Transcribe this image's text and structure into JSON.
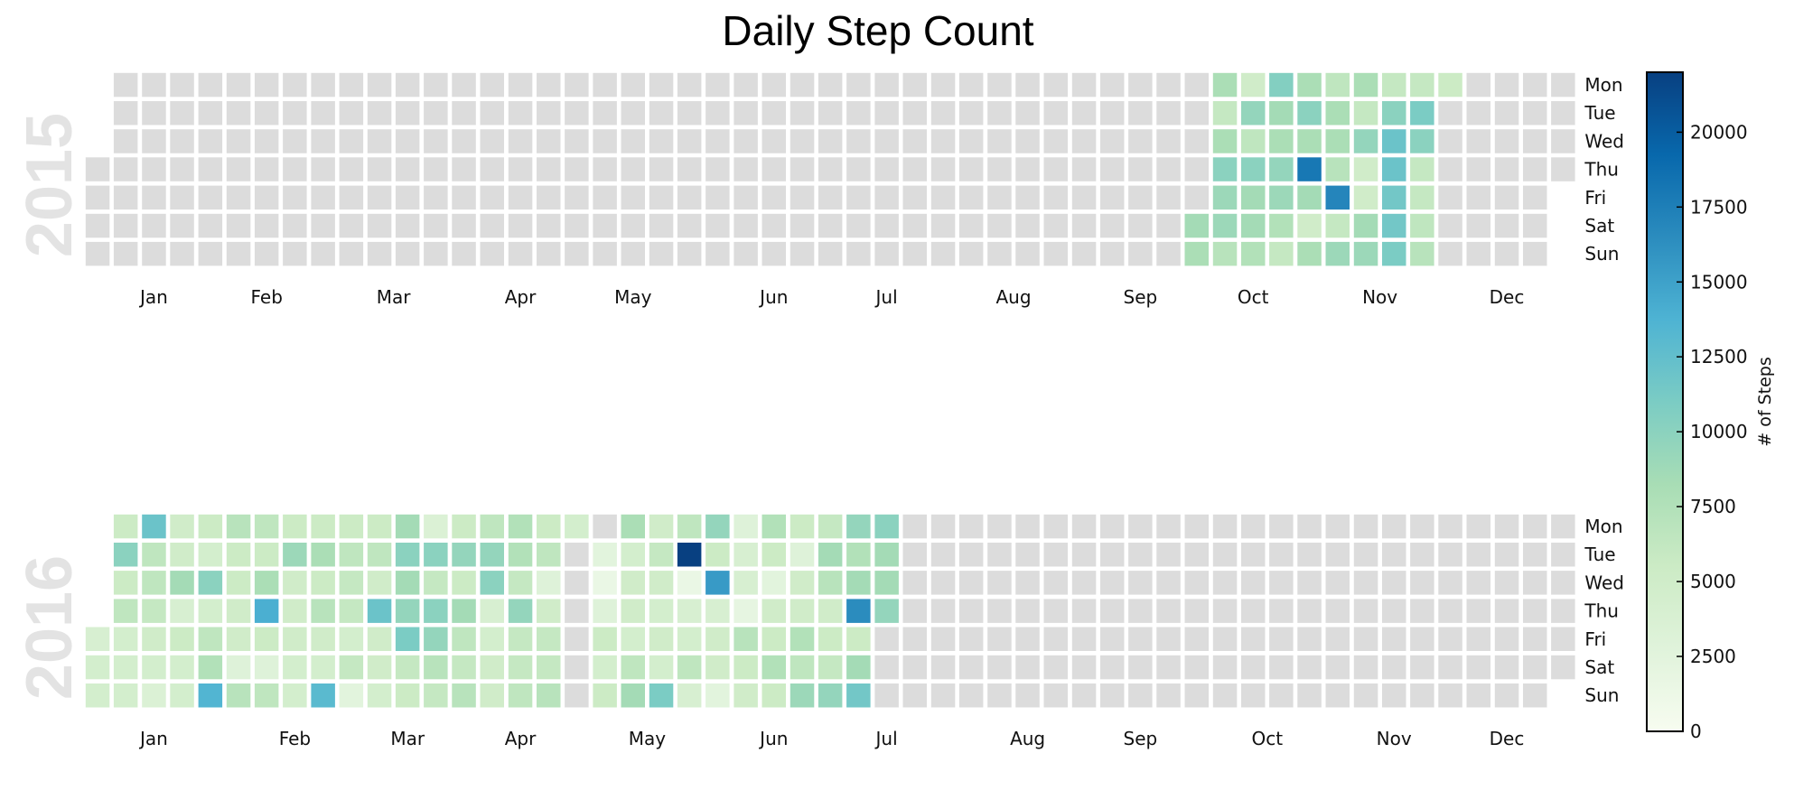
{
  "chart_data": {
    "type": "heatmap",
    "title": "Daily Step Count",
    "colorbar": {
      "label": "# of Steps",
      "range": [
        0,
        22000
      ],
      "ticks": [
        0,
        2500,
        5000,
        7500,
        10000,
        12500,
        15000,
        17500,
        20000
      ],
      "tick_labels": [
        "0",
        "2500",
        "5000",
        "7500",
        "10000",
        "12500",
        "15000",
        "17500",
        "20000"
      ],
      "colormap": "GnBu",
      "stops": [
        "#f7fcf0",
        "#e0f3db",
        "#ccebc5",
        "#a8ddb5",
        "#7bccc4",
        "#4eb3d3",
        "#2b8cbe",
        "#0868ac",
        "#084081"
      ]
    },
    "empty_color": "#dcdcdc",
    "day_labels": [
      "Mon",
      "Tue",
      "Wed",
      "Thu",
      "Fri",
      "Sat",
      "Sun"
    ],
    "months": [
      "Jan",
      "Feb",
      "Mar",
      "Apr",
      "May",
      "Jun",
      "Jul",
      "Aug",
      "Sep",
      "Oct",
      "Nov",
      "Dec"
    ],
    "calendars": [
      {
        "year": "2015",
        "first_day_weekday": 3,
        "days_in_year": 365,
        "values_start": "2015-10-03",
        "values": [
          8500,
          8000,
          8000,
          6000,
          8000,
          10000,
          9000,
          9000,
          7000,
          5000,
          9500,
          6500,
          10000,
          8500,
          8500,
          7500,
          10500,
          8500,
          8000,
          9500,
          9000,
          7500,
          6000,
          8000,
          10000,
          8000,
          18000,
          8500,
          5000,
          8000,
          6500,
          8000,
          8000,
          7000,
          17000,
          6000,
          9000,
          8000,
          6000,
          9500,
          5000,
          5000,
          8500,
          9000,
          6000,
          10000,
          12000,
          12000,
          11500,
          11500,
          11000,
          6000,
          11000,
          10000,
          6000,
          6000,
          6500,
          7000,
          5500
        ]
      },
      {
        "year": "2016",
        "first_day_weekday": 4,
        "days_in_year": 366,
        "values_start": "2016-01-01",
        "values": [
          4000,
          4500,
          4500,
          5500,
          10000,
          5500,
          6500,
          4500,
          4500,
          4500,
          12000,
          6500,
          6500,
          6000,
          5000,
          4500,
          3500,
          5000,
          5000,
          8500,
          4000,
          5500,
          4500,
          4500,
          5500,
          4500,
          10000,
          4500,
          6500,
          7500,
          13500,
          7000,
          5500,
          5500,
          5000,
          5000,
          3000,
          7000,
          6500,
          5500,
          8000,
          14000,
          5500,
          3000,
          6500,
          5500,
          9000,
          5000,
          5000,
          5000,
          4500,
          4500,
          5500,
          8000,
          5500,
          7000,
          5000,
          4500,
          13000,
          5500,
          6500,
          6000,
          6000,
          4500,
          6000,
          2500,
          5500,
          6500,
          5000,
          12000,
          5000,
          5000,
          4500,
          8500,
          10000,
          8500,
          9500,
          11000,
          6000,
          5500,
          3500,
          10000,
          6000,
          10000,
          9500,
          7000,
          6000,
          5500,
          9500,
          5500,
          8500,
          6500,
          6000,
          7000,
          6500,
          9500,
          10000,
          4000,
          4500,
          5000,
          5000,
          7500,
          7500,
          6000,
          9500,
          6000,
          6000,
          6500,
          5500,
          6500,
          3000,
          5000,
          6000,
          6000,
          7000,
          4500,
          0,
          0,
          0,
          0,
          0,
          0,
          0,
          2500,
          1500,
          3000,
          5500,
          4500,
          5500,
          8000,
          4500,
          5000,
          5000,
          4500,
          6500,
          8500,
          5000,
          6000,
          5000,
          4500,
          5000,
          4500,
          11000,
          6500,
          22000,
          1500,
          4000,
          4500,
          6500,
          4000,
          9500,
          5500,
          15500,
          4000,
          5000,
          5000,
          2500,
          3000,
          4000,
          4000,
          2000,
          7000,
          5500,
          5000,
          7500,
          5500,
          2500,
          5000,
          5500,
          7500,
          5500,
          5500,
          3000,
          5000,
          5000,
          7500,
          6500,
          9000,
          6000,
          8500,
          7000,
          5000,
          5500,
          6000,
          9500,
          9500,
          7500,
          8500,
          16500,
          5500,
          8500,
          11500,
          10000,
          8500,
          8500,
          9500
        ]
      }
    ]
  }
}
